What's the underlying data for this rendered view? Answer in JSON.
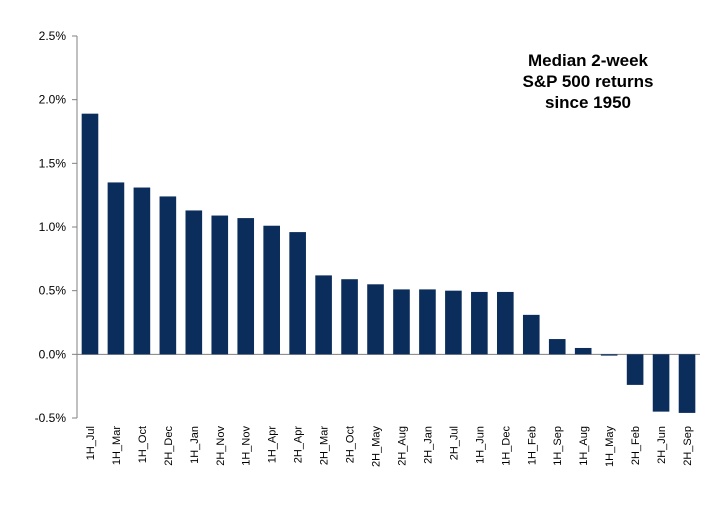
{
  "chart_data": {
    "type": "bar",
    "title_lines": [
      "Median 2-week",
      "S&P 500 returns",
      "since 1950"
    ],
    "xlabel": "",
    "ylabel": "",
    "ylim": [
      -0.5,
      2.5
    ],
    "yticks": [
      -0.5,
      0.0,
      0.5,
      1.0,
      1.5,
      2.0,
      2.5
    ],
    "ytick_labels": [
      "-0.5%",
      "0.0%",
      "0.5%",
      "1.0%",
      "1.5%",
      "2.0%",
      "2.5%"
    ],
    "grid": false,
    "bar_color": "#0b2d5b",
    "categories": [
      "1H_Jul",
      "1H_Mar",
      "1H_Oct",
      "2H_Dec",
      "1H_Jan",
      "2H_Nov",
      "1H_Nov",
      "1H_Apr",
      "2H_Apr",
      "2H_Mar",
      "2H_Oct",
      "2H_May",
      "2H_Aug",
      "2H_Jan",
      "2H_Jul",
      "1H_Jun",
      "1H_Dec",
      "1H_Feb",
      "1H_Sep",
      "1H_Aug",
      "1H_May",
      "2H_Feb",
      "2H_Jun",
      "2H_Sep"
    ],
    "values": [
      1.89,
      1.35,
      1.31,
      1.24,
      1.13,
      1.09,
      1.07,
      1.01,
      0.96,
      0.62,
      0.59,
      0.55,
      0.51,
      0.51,
      0.5,
      0.49,
      0.49,
      0.31,
      0.12,
      0.05,
      -0.01,
      -0.24,
      -0.45,
      -0.46
    ]
  }
}
